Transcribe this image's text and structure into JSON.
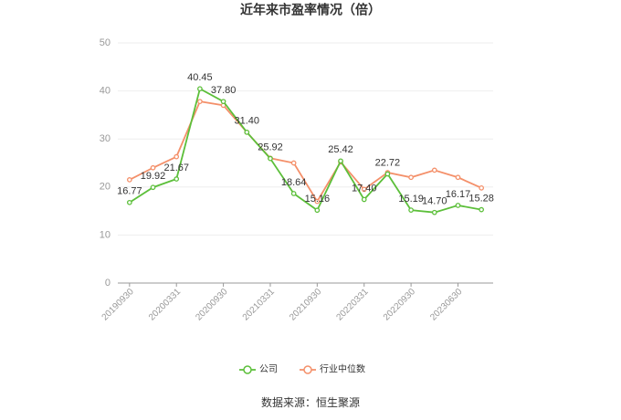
{
  "chart_data": {
    "type": "line",
    "title": "近年来市盈率情况（倍）",
    "categories": [
      "20190930",
      null,
      "20200331",
      null,
      "20200930",
      null,
      "20210331",
      null,
      "20210930",
      null,
      "20220331",
      null,
      "20220930",
      null,
      "20230630",
      null
    ],
    "series": [
      {
        "name": "公司",
        "color": "#5cbf3a",
        "values": [
          16.77,
          19.92,
          21.67,
          40.45,
          37.8,
          31.4,
          25.92,
          18.64,
          15.16,
          25.42,
          17.4,
          22.72,
          15.19,
          14.7,
          16.17,
          15.28
        ],
        "value_labels": [
          "16.77",
          "19.92",
          "21.67",
          "40.45",
          "37.80",
          "31.40",
          "25.92",
          "18.64",
          "15.16",
          "25.42",
          "17.40",
          "22.72",
          "15.19",
          "14.70",
          "16.17",
          "15.28"
        ]
      },
      {
        "name": "行业中位数",
        "color": "#f4906a",
        "values": [
          21.5,
          24.0,
          26.3,
          37.8,
          37.0,
          31.4,
          26.0,
          25.0,
          17.0,
          25.2,
          19.5,
          23.0,
          22.0,
          23.5,
          22.0,
          19.8
        ]
      }
    ],
    "ylim": [
      0,
      50
    ],
    "yticks": [
      0,
      10,
      20,
      30,
      40,
      50
    ],
    "grid": true,
    "legend": "bottom",
    "source": "数据来源：恒生聚源"
  }
}
